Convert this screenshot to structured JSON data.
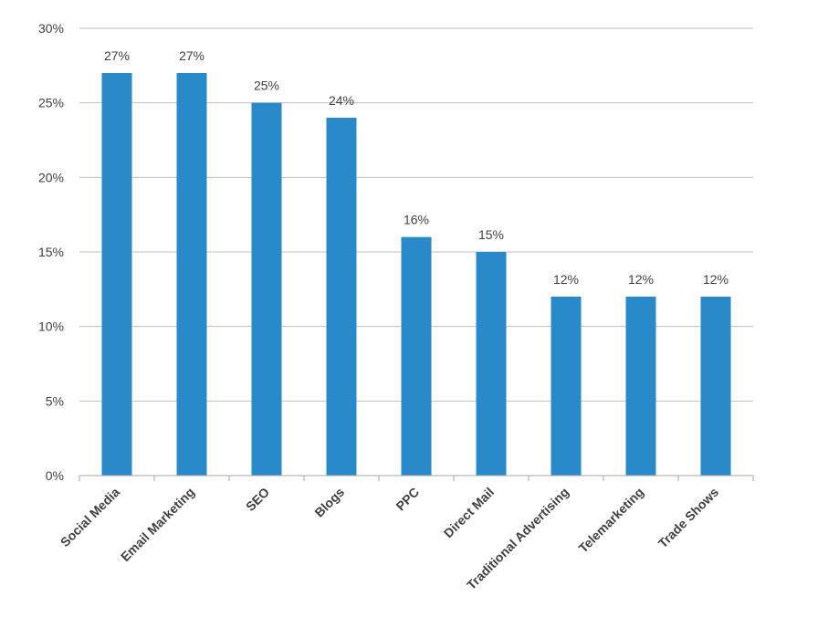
{
  "chart_data": {
    "type": "bar",
    "categories": [
      "Social Media",
      "Email Marketing",
      "SEO",
      "Blogs",
      "PPC",
      "Direct Mail",
      "Traditional Advertising",
      "Telemarketing",
      "Trade Shows"
    ],
    "values": [
      27,
      27,
      25,
      24,
      16,
      15,
      12,
      12,
      12
    ],
    "data_labels": [
      "27%",
      "27%",
      "25%",
      "24%",
      "16%",
      "15%",
      "12%",
      "12%",
      "12%"
    ],
    "y_ticks": [
      0,
      5,
      10,
      15,
      20,
      25,
      30
    ],
    "y_tick_labels": [
      "0%",
      "5%",
      "10%",
      "15%",
      "20%",
      "25%",
      "30%"
    ],
    "ylim": [
      0,
      30
    ],
    "title": "",
    "xlabel": "",
    "ylabel": "",
    "grid": true,
    "legend": "none",
    "colors": {
      "bar": "#2a89c8",
      "grid": "#bfbfbf",
      "axis": "#a6a6a6",
      "text": "#3f3f3f"
    }
  }
}
